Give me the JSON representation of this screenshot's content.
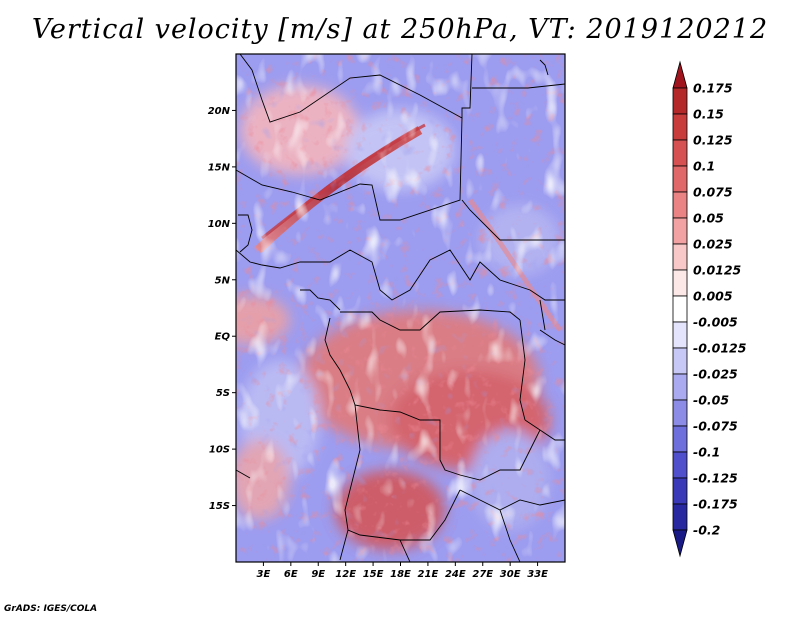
{
  "title": "Vertical velocity [m/s] at 250hPa, VT: 2019120212",
  "footer": "GrADS: IGES/COLA",
  "map": {
    "lon_range": [
      0,
      36
    ],
    "lat_range": [
      -20,
      25
    ],
    "lat_ticks": [
      {
        "value": 20,
        "label": "20N"
      },
      {
        "value": 15,
        "label": "15N"
      },
      {
        "value": 10,
        "label": "10N"
      },
      {
        "value": 5,
        "label": "5N"
      },
      {
        "value": 0,
        "label": "EQ"
      },
      {
        "value": -5,
        "label": "5S"
      },
      {
        "value": -10,
        "label": "10S"
      },
      {
        "value": -15,
        "label": "15S"
      }
    ],
    "lon_ticks": [
      {
        "value": 3,
        "label": "3E"
      },
      {
        "value": 6,
        "label": "6E"
      },
      {
        "value": 9,
        "label": "9E"
      },
      {
        "value": 12,
        "label": "12E"
      },
      {
        "value": 15,
        "label": "15E"
      },
      {
        "value": 18,
        "label": "18E"
      },
      {
        "value": 21,
        "label": "21E"
      },
      {
        "value": 24,
        "label": "24E"
      },
      {
        "value": 27,
        "label": "27E"
      },
      {
        "value": 30,
        "label": "30E"
      },
      {
        "value": 33,
        "label": "33E"
      }
    ]
  },
  "colorbar": {
    "labels": [
      "0.175",
      "0.15",
      "0.125",
      "0.1",
      "0.075",
      "0.05",
      "0.025",
      "0.0125",
      "0.005",
      "-0.005",
      "-0.0125",
      "-0.025",
      "-0.05",
      "-0.075",
      "-0.1",
      "-0.125",
      "-0.175",
      "-0.2"
    ],
    "colors": [
      "#a0141e",
      "#b4282a",
      "#c83c3c",
      "#d65252",
      "#e06868",
      "#ea8484",
      "#f2a2a2",
      "#f8c8c8",
      "#fde8e8",
      "#ffffff",
      "#e4e4fc",
      "#c8c8f6",
      "#aaaaf0",
      "#8c8ce6",
      "#6e6edc",
      "#5050cc",
      "#3a3ab8",
      "#2828a0",
      "#1a1a86"
    ]
  }
}
